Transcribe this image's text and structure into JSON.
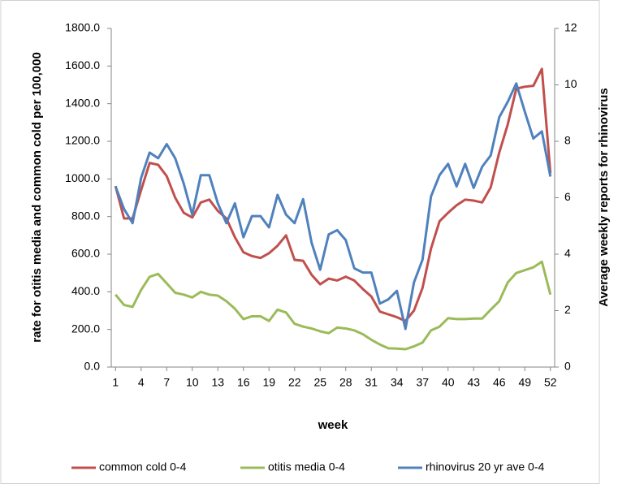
{
  "chart_data": {
    "type": "line",
    "x_label": "week",
    "y_label": "rate for otitis media and common cold per 100,000",
    "y2_label": "Average weekly reports for rhinovirus",
    "x": [
      1,
      2,
      3,
      4,
      5,
      6,
      7,
      8,
      9,
      10,
      11,
      12,
      13,
      14,
      15,
      16,
      17,
      18,
      19,
      20,
      21,
      22,
      23,
      24,
      25,
      26,
      27,
      28,
      29,
      30,
      31,
      32,
      33,
      34,
      35,
      36,
      37,
      38,
      39,
      40,
      41,
      42,
      43,
      44,
      45,
      46,
      47,
      48,
      49,
      50,
      51,
      52
    ],
    "xlim": [
      0.5,
      52.5
    ],
    "xticks": [
      1,
      4,
      7,
      10,
      13,
      16,
      19,
      22,
      25,
      28,
      31,
      34,
      37,
      40,
      43,
      46,
      49,
      52
    ],
    "ylim": [
      0,
      1800
    ],
    "yticks": [
      {
        "value": 0,
        "label": "0.0"
      },
      {
        "value": 200,
        "label": "200.0"
      },
      {
        "value": 400,
        "label": "400.0"
      },
      {
        "value": 600,
        "label": "600.0"
      },
      {
        "value": 800,
        "label": "800.0"
      },
      {
        "value": 1000,
        "label": "1000.0"
      },
      {
        "value": 1200,
        "label": "1200.0"
      },
      {
        "value": 1400,
        "label": "1400.0"
      },
      {
        "value": 1600,
        "label": "1600.0"
      },
      {
        "value": 1800,
        "label": "1800.0"
      }
    ],
    "y2lim": [
      0,
      12
    ],
    "y2ticks": [
      0,
      2,
      4,
      6,
      8,
      10,
      12
    ],
    "grid": false,
    "legend": "bottom",
    "series": [
      {
        "name": "common cold 0-4",
        "color": "#c0504d",
        "values": [
          962,
          790,
          790,
          940,
          1085,
          1075,
          1015,
          900,
          820,
          795,
          875,
          890,
          830,
          790,
          690,
          610,
          590,
          580,
          605,
          645,
          700,
          570,
          565,
          490,
          440,
          470,
          460,
          480,
          460,
          415,
          375,
          295,
          280,
          265,
          245,
          300,
          420,
          630,
          775,
          820,
          860,
          890,
          885,
          875,
          955,
          1140,
          1290,
          1480,
          1490,
          1495,
          1585,
          1030
        ]
      },
      {
        "name": "otitis media 0-4",
        "color": "#9bbb59",
        "values": [
          385,
          330,
          320,
          410,
          480,
          495,
          445,
          395,
          385,
          370,
          400,
          385,
          380,
          350,
          310,
          255,
          270,
          270,
          245,
          305,
          290,
          230,
          215,
          205,
          190,
          180,
          210,
          205,
          195,
          175,
          145,
          120,
          100,
          98,
          95,
          110,
          130,
          195,
          215,
          260,
          255,
          255,
          258,
          258,
          305,
          350,
          450,
          500,
          515,
          530,
          560,
          385
        ]
      },
      {
        "name": "rhinovirus 20 yr ave 0-4",
        "color": "#4f81bd",
        "axis": "y2",
        "values": [
          6.4,
          5.6,
          5.1,
          6.7,
          7.6,
          7.4,
          7.9,
          7.4,
          6.5,
          5.4,
          6.8,
          6.8,
          5.8,
          5.1,
          5.8,
          4.6,
          5.35,
          5.35,
          4.95,
          6.1,
          5.4,
          5.1,
          5.95,
          4.4,
          3.45,
          4.7,
          4.85,
          4.5,
          3.5,
          3.35,
          3.35,
          2.25,
          2.4,
          2.7,
          1.35,
          3.0,
          3.8,
          6.05,
          6.8,
          7.2,
          6.4,
          7.2,
          6.35,
          7.1,
          7.5,
          8.85,
          9.4,
          10.05,
          9.05,
          8.1,
          8.35,
          6.75
        ]
      }
    ]
  }
}
